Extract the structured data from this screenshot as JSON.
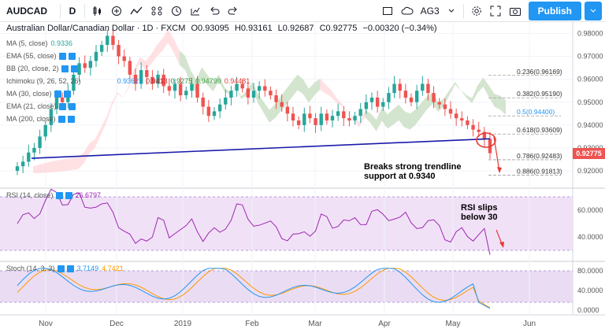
{
  "toolbar": {
    "symbol": "AUDCAD",
    "interval": "D",
    "layout": "AG3",
    "publish": "Publish"
  },
  "legend": {
    "title": "Australian Dollar/Canadian Dollar · 1D · FXCM",
    "o": "O0.93095",
    "h": "H0.93161",
    "l": "L0.92687",
    "c": "C0.92775",
    "chg": "−0.00320 (−0.34%)",
    "ma5": "MA (5, close)",
    "ma5_val": "0.9336",
    "ema55": "EMA (55, close)",
    "bb": "BB (20, close, 2)",
    "ichimoku": "Ichimoku (9, 26, 52, 26)",
    "ichi_vals": [
      "0.93627",
      "0.9413",
      "0.9275",
      "0.94799",
      "0.94481"
    ],
    "ma30": "MA (30, close)",
    "ema21": "EMA (21, close)",
    "ma200": "MA (200, close)",
    "rsi": "RSI (14, close)",
    "rsi_val": "26.6797",
    "stoch": "Stoch (14, 3, 3)",
    "stoch_k": "3.7149",
    "stoch_d": "4.7421"
  },
  "annotations": {
    "trend": [
      "Breaks strong trendline",
      "support at 0.9340"
    ],
    "rsi": [
      "RSI slips",
      "below 30"
    ]
  },
  "last_price": "0.92775",
  "colors": {
    "up": "#26a69a",
    "down": "#ef5350",
    "trendline": "#1a1aaa",
    "rsi": "#9c27b0",
    "stoch_k": "#2196f3",
    "stoch_d": "#ff9800",
    "cloud_green": "#c8e6c9",
    "cloud_red": "#ffcdd2"
  },
  "chart_data": {
    "type": "candlestick",
    "title": "Australian Dollar/Canadian Dollar · 1D · FXCM",
    "price_axis": {
      "ticks": [
        "0.98000",
        "0.97000",
        "0.96000",
        "0.95000",
        "0.94000",
        "0.93000",
        "0.92000"
      ],
      "range": [
        0.9145,
        0.985
      ]
    },
    "time_axis": {
      "ticks": [
        "Nov",
        "Dec",
        "2019",
        "Feb",
        "Mar",
        "Apr",
        "May",
        "Jun"
      ]
    },
    "fibonacci": [
      {
        "label": "0.236(0.96169)",
        "value": 0.96169
      },
      {
        "label": "0.382(0.95190)",
        "value": 0.9519
      },
      {
        "label": "0.5(0.94400)",
        "value": 0.944
      },
      {
        "label": "0.618(0.93609)",
        "value": 0.93609
      },
      {
        "label": "0.786(0.92483)",
        "value": 0.92483
      },
      {
        "label": "0.886(0.91813)",
        "value": 0.91813
      }
    ],
    "close_series": [
      0.922,
      0.924,
      0.928,
      0.93,
      0.935,
      0.94,
      0.947,
      0.952,
      0.95,
      0.955,
      0.962,
      0.967,
      0.965,
      0.968,
      0.972,
      0.975,
      0.979,
      0.975,
      0.97,
      0.968,
      0.962,
      0.958,
      0.964,
      0.961,
      0.958,
      0.962,
      0.957,
      0.955,
      0.958,
      0.953,
      0.955,
      0.958,
      0.952,
      0.948,
      0.944,
      0.946,
      0.949,
      0.952,
      0.955,
      0.958,
      0.956,
      0.952,
      0.955,
      0.957,
      0.955,
      0.953,
      0.95,
      0.948,
      0.945,
      0.942,
      0.94,
      0.945,
      0.943,
      0.94,
      0.945,
      0.942,
      0.944,
      0.946,
      0.943,
      0.942,
      0.944,
      0.947,
      0.95,
      0.952,
      0.948,
      0.95,
      0.954,
      0.958,
      0.955,
      0.952,
      0.95,
      0.955,
      0.958,
      0.954,
      0.95,
      0.949,
      0.947,
      0.945,
      0.943,
      0.942,
      0.94,
      0.938,
      0.937,
      0.934,
      0.9277
    ],
    "trendline": {
      "start": 0.9255,
      "end": 0.934
    },
    "rsi": {
      "label": "RSI (14, close)",
      "ticks": [
        "60.0000",
        "40.0000"
      ],
      "last": 26.6797
    },
    "stoch": {
      "label": "Stoch (14, 3, 3)",
      "ticks": [
        "80.0000",
        "40.0000",
        "0.0000"
      ],
      "k_last": 3.7149,
      "d_last": 4.7421
    }
  }
}
